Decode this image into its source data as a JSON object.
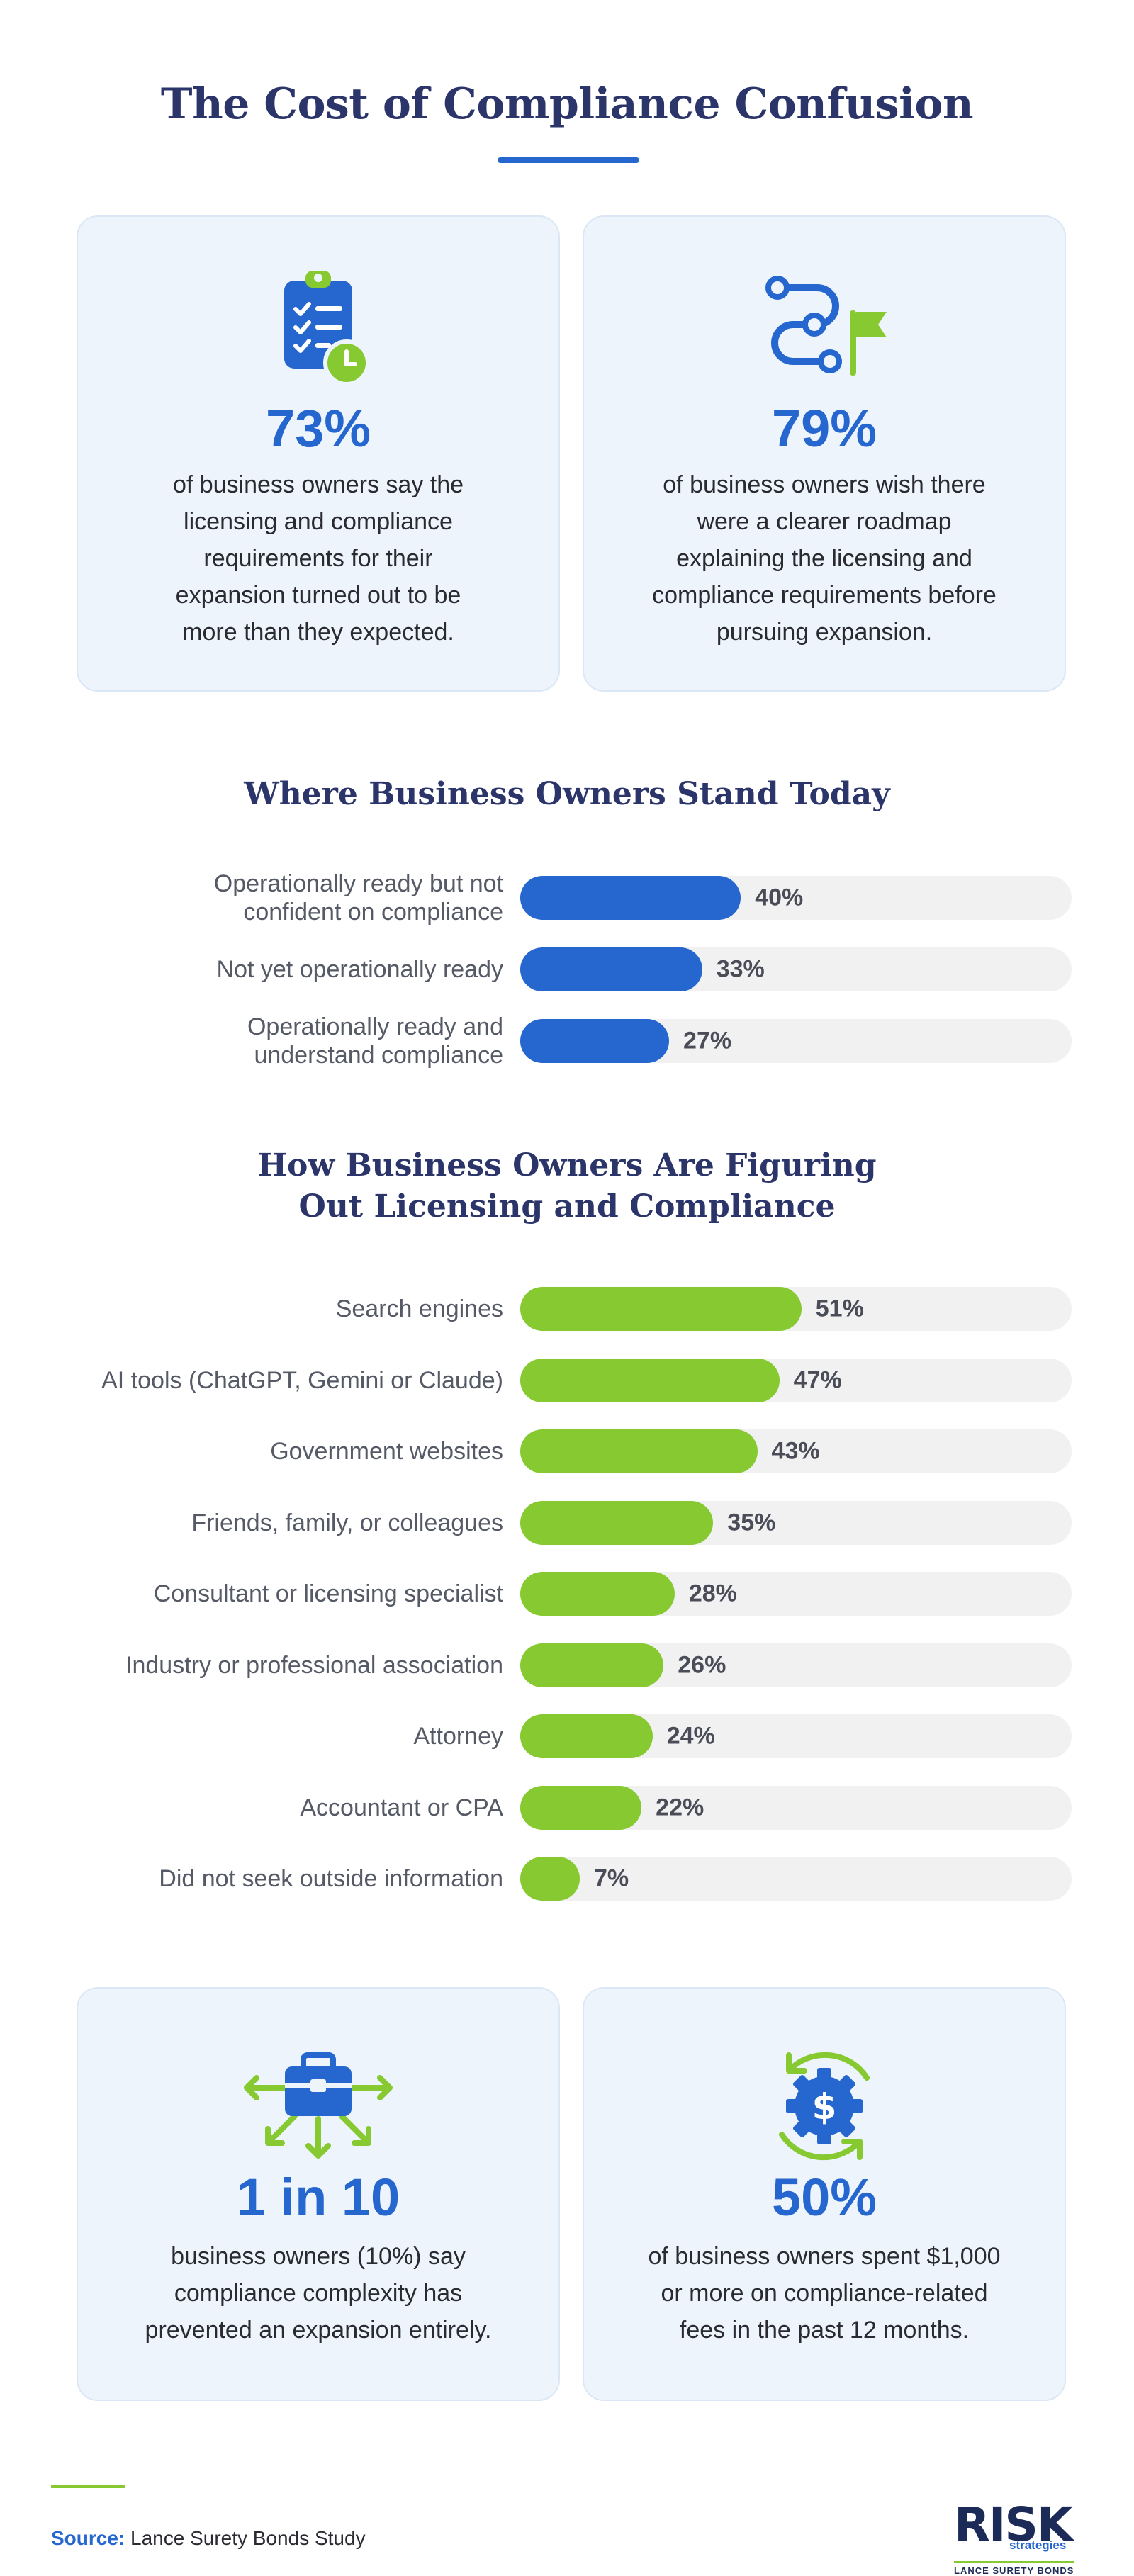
{
  "title": "The Cost of Compliance Confusion",
  "top_cards": [
    {
      "stat": "73%",
      "lines": [
        "of business owners say the",
        "licensing and compliance",
        "requirements for their",
        "expansion turned out to be",
        "more than they expected."
      ],
      "icon": "clipboard-checklist-clock-icon"
    },
    {
      "stat": "79%",
      "lines": [
        "of business owners wish there",
        "were a clearer roadmap",
        "explaining the licensing and",
        "compliance requirements before",
        "pursuing expansion."
      ],
      "icon": "route-flag-icon"
    }
  ],
  "chart_data": [
    {
      "type": "bar",
      "orientation": "horizontal",
      "title": "Where Business Owners Stand Today",
      "categories": [
        "Operationally ready but not confident on compliance",
        "Not yet operationally ready",
        "Operationally ready and understand compliance"
      ],
      "category_lines": [
        [
          "Operationally ready but not",
          "confident on compliance"
        ],
        [
          "Not yet operationally ready"
        ],
        [
          "Operationally ready and",
          "understand compliance"
        ]
      ],
      "values": [
        40,
        33,
        27
      ],
      "value_labels": [
        "40%",
        "33%",
        "27%"
      ],
      "xlim": [
        0,
        100
      ],
      "color": "#2566cf"
    },
    {
      "type": "bar",
      "orientation": "horizontal",
      "title_lines": [
        "How Business Owners Are Figuring",
        "Out Licensing and Compliance"
      ],
      "categories": [
        "Search engines",
        "AI tools (ChatGPT, Gemini or Claude)",
        "Government websites",
        "Friends, family, or colleagues",
        "Consultant or licensing specialist",
        "Industry or professional association",
        "Attorney",
        "Accountant or CPA",
        "Did not seek outside information"
      ],
      "values": [
        51,
        47,
        43,
        35,
        28,
        26,
        24,
        22,
        7
      ],
      "value_labels": [
        "51%",
        "47%",
        "43%",
        "35%",
        "28%",
        "26%",
        "24%",
        "22%",
        "7%"
      ],
      "xlim": [
        0,
        100
      ],
      "color": "#86c930"
    }
  ],
  "bottom_cards": [
    {
      "stat": "1 in 10",
      "lines": [
        "business owners (10%) say",
        "compliance complexity has",
        "prevented an expansion entirely."
      ],
      "icon": "briefcase-arrows-icon"
    },
    {
      "stat": "50%",
      "lines": [
        "of business owners spent $1,000",
        "or more on compliance-related",
        "fees in the past 12 months."
      ],
      "icon": "gear-dollar-cycle-icon"
    }
  ],
  "footer": {
    "source_key": "Source:",
    "source_text": "Lance Surety Bonds Study",
    "logo": {
      "risk": "RISK",
      "strategies": "strategies",
      "sub": "LANCE SURETY BONDS"
    }
  }
}
